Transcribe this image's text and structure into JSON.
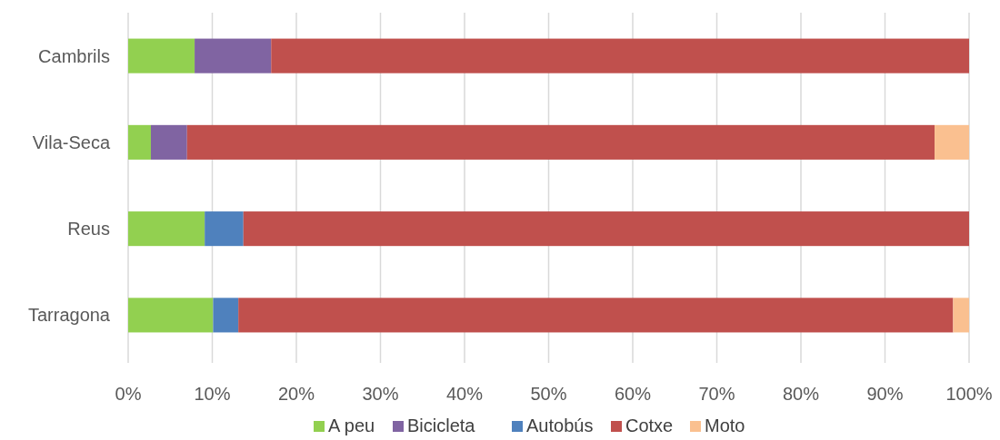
{
  "chart_data": {
    "type": "bar",
    "orientation": "horizontal",
    "stacked": true,
    "categories": [
      "Cambrils",
      "Vila-Seca",
      "Reus",
      "Tarragona"
    ],
    "series": [
      {
        "name": "A peu",
        "color": "#92d050",
        "values": [
          7.9,
          2.7,
          9.1,
          10.1
        ]
      },
      {
        "name": "Bicicleta",
        "color": "#8064a2",
        "values": [
          9.1,
          4.3,
          null,
          null
        ]
      },
      {
        "name": "Autobús",
        "color": "#4f81bd",
        "values": [
          null,
          null,
          4.6,
          3.0
        ]
      },
      {
        "name": "Cotxe",
        "color": "#c0504d",
        "values": [
          83.0,
          88.9,
          86.3,
          85.0
        ]
      },
      {
        "name": "Moto",
        "color": "#fac090",
        "values": [
          null,
          4.1,
          null,
          1.9
        ]
      }
    ],
    "xlim": [
      0,
      100
    ],
    "xticks": [
      {
        "value": 0,
        "label": "0%"
      },
      {
        "value": 10,
        "label": "10%"
      },
      {
        "value": 20,
        "label": "20%"
      },
      {
        "value": 30,
        "label": "30%"
      },
      {
        "value": 40,
        "label": "40%"
      },
      {
        "value": 50,
        "label": "50%"
      },
      {
        "value": 60,
        "label": "60%"
      },
      {
        "value": 70,
        "label": "70%"
      },
      {
        "value": 80,
        "label": "80%"
      },
      {
        "value": 90,
        "label": "90%"
      },
      {
        "value": 100,
        "label": "100%"
      }
    ],
    "grid": "x",
    "legend": "bottom"
  }
}
